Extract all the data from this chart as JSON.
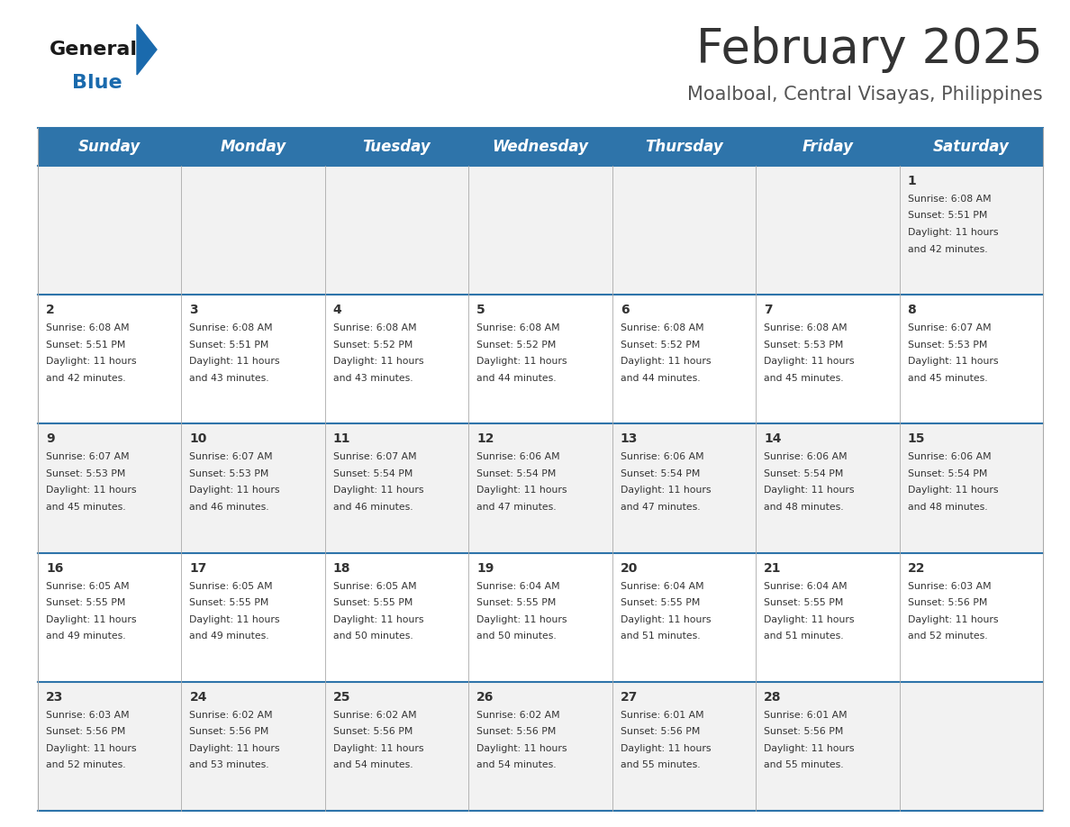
{
  "title": "February 2025",
  "subtitle": "Moalboal, Central Visayas, Philippines",
  "header_bg": "#2E74AA",
  "header_text_color": "#FFFFFF",
  "cell_bg_odd": "#F2F2F2",
  "cell_bg_even": "#FFFFFF",
  "separator_color": "#2E74AA",
  "border_color": "#AAAAAA",
  "text_color": "#333333",
  "days_of_week": [
    "Sunday",
    "Monday",
    "Tuesday",
    "Wednesday",
    "Thursday",
    "Friday",
    "Saturday"
  ],
  "calendar_data": [
    [
      null,
      null,
      null,
      null,
      null,
      null,
      {
        "day": "1",
        "sunrise": "6:08 AM",
        "sunset": "5:51 PM",
        "daylight_h": "11 hours",
        "daylight_m": "42 minutes."
      }
    ],
    [
      {
        "day": "2",
        "sunrise": "6:08 AM",
        "sunset": "5:51 PM",
        "daylight_h": "11 hours",
        "daylight_m": "42 minutes."
      },
      {
        "day": "3",
        "sunrise": "6:08 AM",
        "sunset": "5:51 PM",
        "daylight_h": "11 hours",
        "daylight_m": "43 minutes."
      },
      {
        "day": "4",
        "sunrise": "6:08 AM",
        "sunset": "5:52 PM",
        "daylight_h": "11 hours",
        "daylight_m": "43 minutes."
      },
      {
        "day": "5",
        "sunrise": "6:08 AM",
        "sunset": "5:52 PM",
        "daylight_h": "11 hours",
        "daylight_m": "44 minutes."
      },
      {
        "day": "6",
        "sunrise": "6:08 AM",
        "sunset": "5:52 PM",
        "daylight_h": "11 hours",
        "daylight_m": "44 minutes."
      },
      {
        "day": "7",
        "sunrise": "6:08 AM",
        "sunset": "5:53 PM",
        "daylight_h": "11 hours",
        "daylight_m": "45 minutes."
      },
      {
        "day": "8",
        "sunrise": "6:07 AM",
        "sunset": "5:53 PM",
        "daylight_h": "11 hours",
        "daylight_m": "45 minutes."
      }
    ],
    [
      {
        "day": "9",
        "sunrise": "6:07 AM",
        "sunset": "5:53 PM",
        "daylight_h": "11 hours",
        "daylight_m": "45 minutes."
      },
      {
        "day": "10",
        "sunrise": "6:07 AM",
        "sunset": "5:53 PM",
        "daylight_h": "11 hours",
        "daylight_m": "46 minutes."
      },
      {
        "day": "11",
        "sunrise": "6:07 AM",
        "sunset": "5:54 PM",
        "daylight_h": "11 hours",
        "daylight_m": "46 minutes."
      },
      {
        "day": "12",
        "sunrise": "6:06 AM",
        "sunset": "5:54 PM",
        "daylight_h": "11 hours",
        "daylight_m": "47 minutes."
      },
      {
        "day": "13",
        "sunrise": "6:06 AM",
        "sunset": "5:54 PM",
        "daylight_h": "11 hours",
        "daylight_m": "47 minutes."
      },
      {
        "day": "14",
        "sunrise": "6:06 AM",
        "sunset": "5:54 PM",
        "daylight_h": "11 hours",
        "daylight_m": "48 minutes."
      },
      {
        "day": "15",
        "sunrise": "6:06 AM",
        "sunset": "5:54 PM",
        "daylight_h": "11 hours",
        "daylight_m": "48 minutes."
      }
    ],
    [
      {
        "day": "16",
        "sunrise": "6:05 AM",
        "sunset": "5:55 PM",
        "daylight_h": "11 hours",
        "daylight_m": "49 minutes."
      },
      {
        "day": "17",
        "sunrise": "6:05 AM",
        "sunset": "5:55 PM",
        "daylight_h": "11 hours",
        "daylight_m": "49 minutes."
      },
      {
        "day": "18",
        "sunrise": "6:05 AM",
        "sunset": "5:55 PM",
        "daylight_h": "11 hours",
        "daylight_m": "50 minutes."
      },
      {
        "day": "19",
        "sunrise": "6:04 AM",
        "sunset": "5:55 PM",
        "daylight_h": "11 hours",
        "daylight_m": "50 minutes."
      },
      {
        "day": "20",
        "sunrise": "6:04 AM",
        "sunset": "5:55 PM",
        "daylight_h": "11 hours",
        "daylight_m": "51 minutes."
      },
      {
        "day": "21",
        "sunrise": "6:04 AM",
        "sunset": "5:55 PM",
        "daylight_h": "11 hours",
        "daylight_m": "51 minutes."
      },
      {
        "day": "22",
        "sunrise": "6:03 AM",
        "sunset": "5:56 PM",
        "daylight_h": "11 hours",
        "daylight_m": "52 minutes."
      }
    ],
    [
      {
        "day": "23",
        "sunrise": "6:03 AM",
        "sunset": "5:56 PM",
        "daylight_h": "11 hours",
        "daylight_m": "52 minutes."
      },
      {
        "day": "24",
        "sunrise": "6:02 AM",
        "sunset": "5:56 PM",
        "daylight_h": "11 hours",
        "daylight_m": "53 minutes."
      },
      {
        "day": "25",
        "sunrise": "6:02 AM",
        "sunset": "5:56 PM",
        "daylight_h": "11 hours",
        "daylight_m": "54 minutes."
      },
      {
        "day": "26",
        "sunrise": "6:02 AM",
        "sunset": "5:56 PM",
        "daylight_h": "11 hours",
        "daylight_m": "54 minutes."
      },
      {
        "day": "27",
        "sunrise": "6:01 AM",
        "sunset": "5:56 PM",
        "daylight_h": "11 hours",
        "daylight_m": "55 minutes."
      },
      {
        "day": "28",
        "sunrise": "6:01 AM",
        "sunset": "5:56 PM",
        "daylight_h": "11 hours",
        "daylight_m": "55 minutes."
      },
      null
    ]
  ],
  "logo_color_general": "#1a1a1a",
  "logo_color_blue": "#1a6aad",
  "logo_triangle_color": "#1a6aad",
  "title_fontsize": 38,
  "subtitle_fontsize": 15,
  "header_fontsize": 12,
  "day_num_fontsize": 10,
  "cell_text_fontsize": 7.8
}
